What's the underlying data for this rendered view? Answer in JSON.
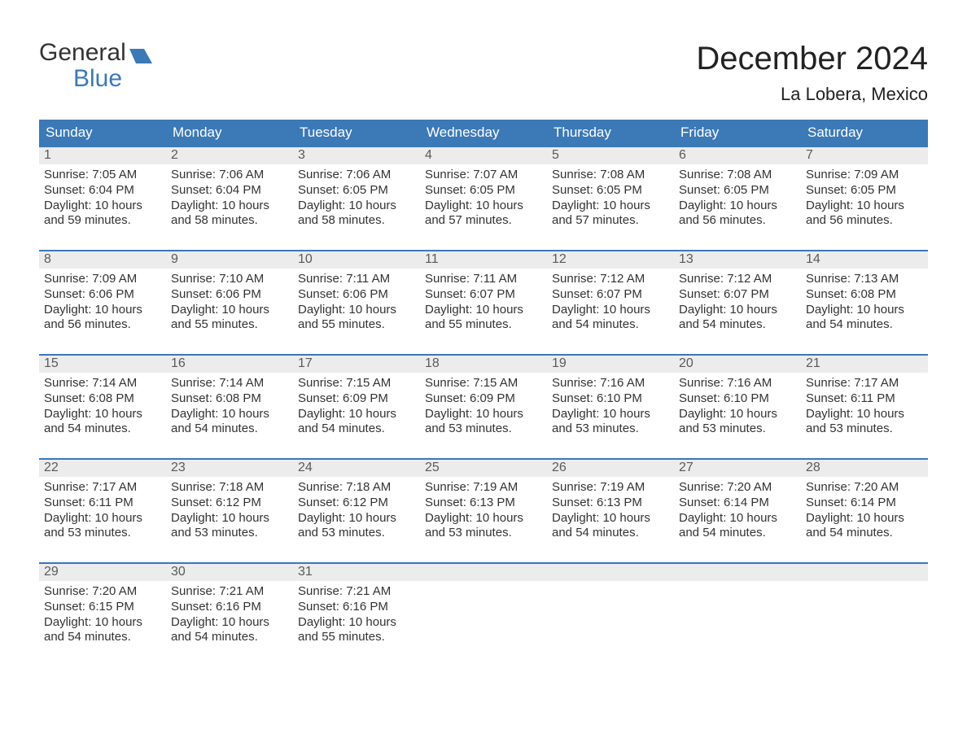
{
  "logo": {
    "text1": "General",
    "text2": "Blue",
    "icon_color": "#3b79b7"
  },
  "title": "December 2024",
  "location": "La Lobera, Mexico",
  "colors": {
    "header_bg": "#3b79b7",
    "header_text": "#ffffff",
    "daynum_bg": "#ececec",
    "daynum_text": "#5a5a5a",
    "body_text": "#333333",
    "row_border": "#3b79b7"
  },
  "weekdays": [
    "Sunday",
    "Monday",
    "Tuesday",
    "Wednesday",
    "Thursday",
    "Friday",
    "Saturday"
  ],
  "weeks": [
    [
      {
        "n": "1",
        "sunrise": "Sunrise: 7:05 AM",
        "sunset": "Sunset: 6:04 PM",
        "d1": "Daylight: 10 hours",
        "d2": "and 59 minutes."
      },
      {
        "n": "2",
        "sunrise": "Sunrise: 7:06 AM",
        "sunset": "Sunset: 6:04 PM",
        "d1": "Daylight: 10 hours",
        "d2": "and 58 minutes."
      },
      {
        "n": "3",
        "sunrise": "Sunrise: 7:06 AM",
        "sunset": "Sunset: 6:05 PM",
        "d1": "Daylight: 10 hours",
        "d2": "and 58 minutes."
      },
      {
        "n": "4",
        "sunrise": "Sunrise: 7:07 AM",
        "sunset": "Sunset: 6:05 PM",
        "d1": "Daylight: 10 hours",
        "d2": "and 57 minutes."
      },
      {
        "n": "5",
        "sunrise": "Sunrise: 7:08 AM",
        "sunset": "Sunset: 6:05 PM",
        "d1": "Daylight: 10 hours",
        "d2": "and 57 minutes."
      },
      {
        "n": "6",
        "sunrise": "Sunrise: 7:08 AM",
        "sunset": "Sunset: 6:05 PM",
        "d1": "Daylight: 10 hours",
        "d2": "and 56 minutes."
      },
      {
        "n": "7",
        "sunrise": "Sunrise: 7:09 AM",
        "sunset": "Sunset: 6:05 PM",
        "d1": "Daylight: 10 hours",
        "d2": "and 56 minutes."
      }
    ],
    [
      {
        "n": "8",
        "sunrise": "Sunrise: 7:09 AM",
        "sunset": "Sunset: 6:06 PM",
        "d1": "Daylight: 10 hours",
        "d2": "and 56 minutes."
      },
      {
        "n": "9",
        "sunrise": "Sunrise: 7:10 AM",
        "sunset": "Sunset: 6:06 PM",
        "d1": "Daylight: 10 hours",
        "d2": "and 55 minutes."
      },
      {
        "n": "10",
        "sunrise": "Sunrise: 7:11 AM",
        "sunset": "Sunset: 6:06 PM",
        "d1": "Daylight: 10 hours",
        "d2": "and 55 minutes."
      },
      {
        "n": "11",
        "sunrise": "Sunrise: 7:11 AM",
        "sunset": "Sunset: 6:07 PM",
        "d1": "Daylight: 10 hours",
        "d2": "and 55 minutes."
      },
      {
        "n": "12",
        "sunrise": "Sunrise: 7:12 AM",
        "sunset": "Sunset: 6:07 PM",
        "d1": "Daylight: 10 hours",
        "d2": "and 54 minutes."
      },
      {
        "n": "13",
        "sunrise": "Sunrise: 7:12 AM",
        "sunset": "Sunset: 6:07 PM",
        "d1": "Daylight: 10 hours",
        "d2": "and 54 minutes."
      },
      {
        "n": "14",
        "sunrise": "Sunrise: 7:13 AM",
        "sunset": "Sunset: 6:08 PM",
        "d1": "Daylight: 10 hours",
        "d2": "and 54 minutes."
      }
    ],
    [
      {
        "n": "15",
        "sunrise": "Sunrise: 7:14 AM",
        "sunset": "Sunset: 6:08 PM",
        "d1": "Daylight: 10 hours",
        "d2": "and 54 minutes."
      },
      {
        "n": "16",
        "sunrise": "Sunrise: 7:14 AM",
        "sunset": "Sunset: 6:08 PM",
        "d1": "Daylight: 10 hours",
        "d2": "and 54 minutes."
      },
      {
        "n": "17",
        "sunrise": "Sunrise: 7:15 AM",
        "sunset": "Sunset: 6:09 PM",
        "d1": "Daylight: 10 hours",
        "d2": "and 54 minutes."
      },
      {
        "n": "18",
        "sunrise": "Sunrise: 7:15 AM",
        "sunset": "Sunset: 6:09 PM",
        "d1": "Daylight: 10 hours",
        "d2": "and 53 minutes."
      },
      {
        "n": "19",
        "sunrise": "Sunrise: 7:16 AM",
        "sunset": "Sunset: 6:10 PM",
        "d1": "Daylight: 10 hours",
        "d2": "and 53 minutes."
      },
      {
        "n": "20",
        "sunrise": "Sunrise: 7:16 AM",
        "sunset": "Sunset: 6:10 PM",
        "d1": "Daylight: 10 hours",
        "d2": "and 53 minutes."
      },
      {
        "n": "21",
        "sunrise": "Sunrise: 7:17 AM",
        "sunset": "Sunset: 6:11 PM",
        "d1": "Daylight: 10 hours",
        "d2": "and 53 minutes."
      }
    ],
    [
      {
        "n": "22",
        "sunrise": "Sunrise: 7:17 AM",
        "sunset": "Sunset: 6:11 PM",
        "d1": "Daylight: 10 hours",
        "d2": "and 53 minutes."
      },
      {
        "n": "23",
        "sunrise": "Sunrise: 7:18 AM",
        "sunset": "Sunset: 6:12 PM",
        "d1": "Daylight: 10 hours",
        "d2": "and 53 minutes."
      },
      {
        "n": "24",
        "sunrise": "Sunrise: 7:18 AM",
        "sunset": "Sunset: 6:12 PM",
        "d1": "Daylight: 10 hours",
        "d2": "and 53 minutes."
      },
      {
        "n": "25",
        "sunrise": "Sunrise: 7:19 AM",
        "sunset": "Sunset: 6:13 PM",
        "d1": "Daylight: 10 hours",
        "d2": "and 53 minutes."
      },
      {
        "n": "26",
        "sunrise": "Sunrise: 7:19 AM",
        "sunset": "Sunset: 6:13 PM",
        "d1": "Daylight: 10 hours",
        "d2": "and 54 minutes."
      },
      {
        "n": "27",
        "sunrise": "Sunrise: 7:20 AM",
        "sunset": "Sunset: 6:14 PM",
        "d1": "Daylight: 10 hours",
        "d2": "and 54 minutes."
      },
      {
        "n": "28",
        "sunrise": "Sunrise: 7:20 AM",
        "sunset": "Sunset: 6:14 PM",
        "d1": "Daylight: 10 hours",
        "d2": "and 54 minutes."
      }
    ],
    [
      {
        "n": "29",
        "sunrise": "Sunrise: 7:20 AM",
        "sunset": "Sunset: 6:15 PM",
        "d1": "Daylight: 10 hours",
        "d2": "and 54 minutes."
      },
      {
        "n": "30",
        "sunrise": "Sunrise: 7:21 AM",
        "sunset": "Sunset: 6:16 PM",
        "d1": "Daylight: 10 hours",
        "d2": "and 54 minutes."
      },
      {
        "n": "31",
        "sunrise": "Sunrise: 7:21 AM",
        "sunset": "Sunset: 6:16 PM",
        "d1": "Daylight: 10 hours",
        "d2": "and 55 minutes."
      },
      null,
      null,
      null,
      null
    ]
  ]
}
